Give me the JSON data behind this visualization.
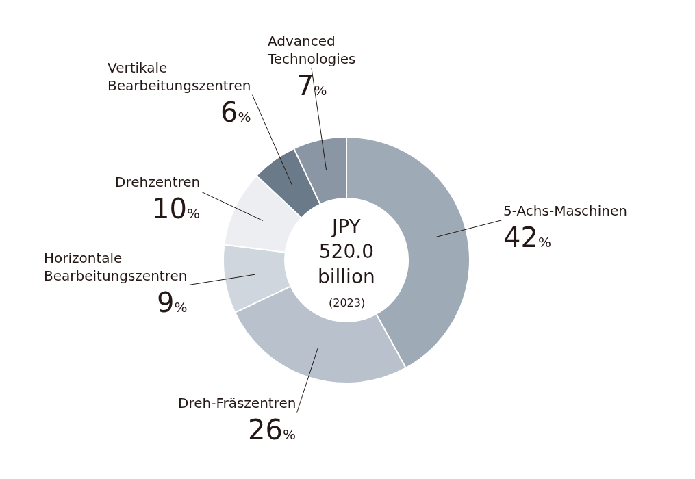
{
  "chart_data": {
    "type": "donut",
    "title": "JPY 520.0 billion",
    "subtitle": "(2023)",
    "categories": [
      "5-Achs-Maschinen",
      "Dreh-Fräszentren",
      "Horizontale Bearbeitungszentren",
      "Drehzentren",
      "Vertikale Bearbeitungszentren",
      "Advanced Technologies"
    ],
    "values": [
      42,
      26,
      9,
      10,
      6,
      7
    ],
    "value_labels": [
      "42%",
      "26%",
      "9%",
      "10%",
      "6%",
      "7%"
    ],
    "colors": [
      "#9eaab6",
      "#b9c2cc",
      "#d0d6dd",
      "#eceef1",
      "#6b7a89",
      "#8a96a3"
    ]
  }
}
